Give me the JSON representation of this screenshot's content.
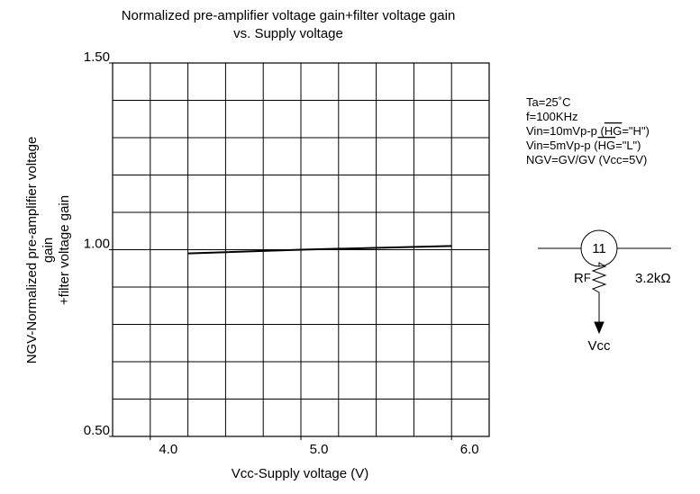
{
  "chart_data": {
    "type": "line",
    "title": [
      "Normalized pre-amplifier voltage gain+filter voltage gain",
      "vs. Supply voltage"
    ],
    "x_label": "Vcc-Supply voltage (V)",
    "y_label": [
      "NGV-Normalized pre-amplifier voltage",
      "gain",
      "+filter voltage gain"
    ],
    "x": [
      4.25,
      5.0,
      6.0
    ],
    "series": [
      {
        "color": "#000000",
        "values": [
          0.99,
          1.0,
          1.01
        ]
      }
    ],
    "xlim": [
      3.75,
      6.25
    ],
    "ylim": [
      0.5,
      1.5
    ],
    "xticks": [
      {
        "value": 4,
        "label": "4.0"
      },
      {
        "value": 5,
        "label": "5.0"
      },
      {
        "value": 6,
        "label": "6.0"
      }
    ],
    "yticks": [
      {
        "value": 0.5,
        "label": "0.50"
      },
      {
        "value": 1,
        "label": "1.00"
      },
      {
        "value": 1.5,
        "label": "1.50"
      }
    ],
    "xgrid": [
      3.75,
      4,
      4.25,
      4.5,
      4.75,
      5,
      5.25,
      5.5,
      5.75,
      6,
      6.25
    ],
    "ygrid": [
      0.5,
      0.6,
      0.7,
      0.8,
      0.9,
      1,
      1.1,
      1.2,
      1.3,
      1.4,
      1.5
    ],
    "grid": true,
    "conditions": [
      {
        "text": "Ta=25˚C"
      },
      {
        "text": "f=100KHz"
      },
      {
        "text": "Vin=10mVp-p (",
        "overline": "HG",
        "rest": "=\"H\")"
      },
      {
        "text": "Vin=5mVp-p (",
        "overline": "HG",
        "rest": "=\"L\")"
      },
      {
        "text": "NGV=GV/GV (Vcc=5V)"
      }
    ],
    "circuit": {
      "pin": "11",
      "resistor": "R",
      "resistor_sub": "F",
      "resistance": "3.2kΩ",
      "supply": "Vcc"
    }
  }
}
